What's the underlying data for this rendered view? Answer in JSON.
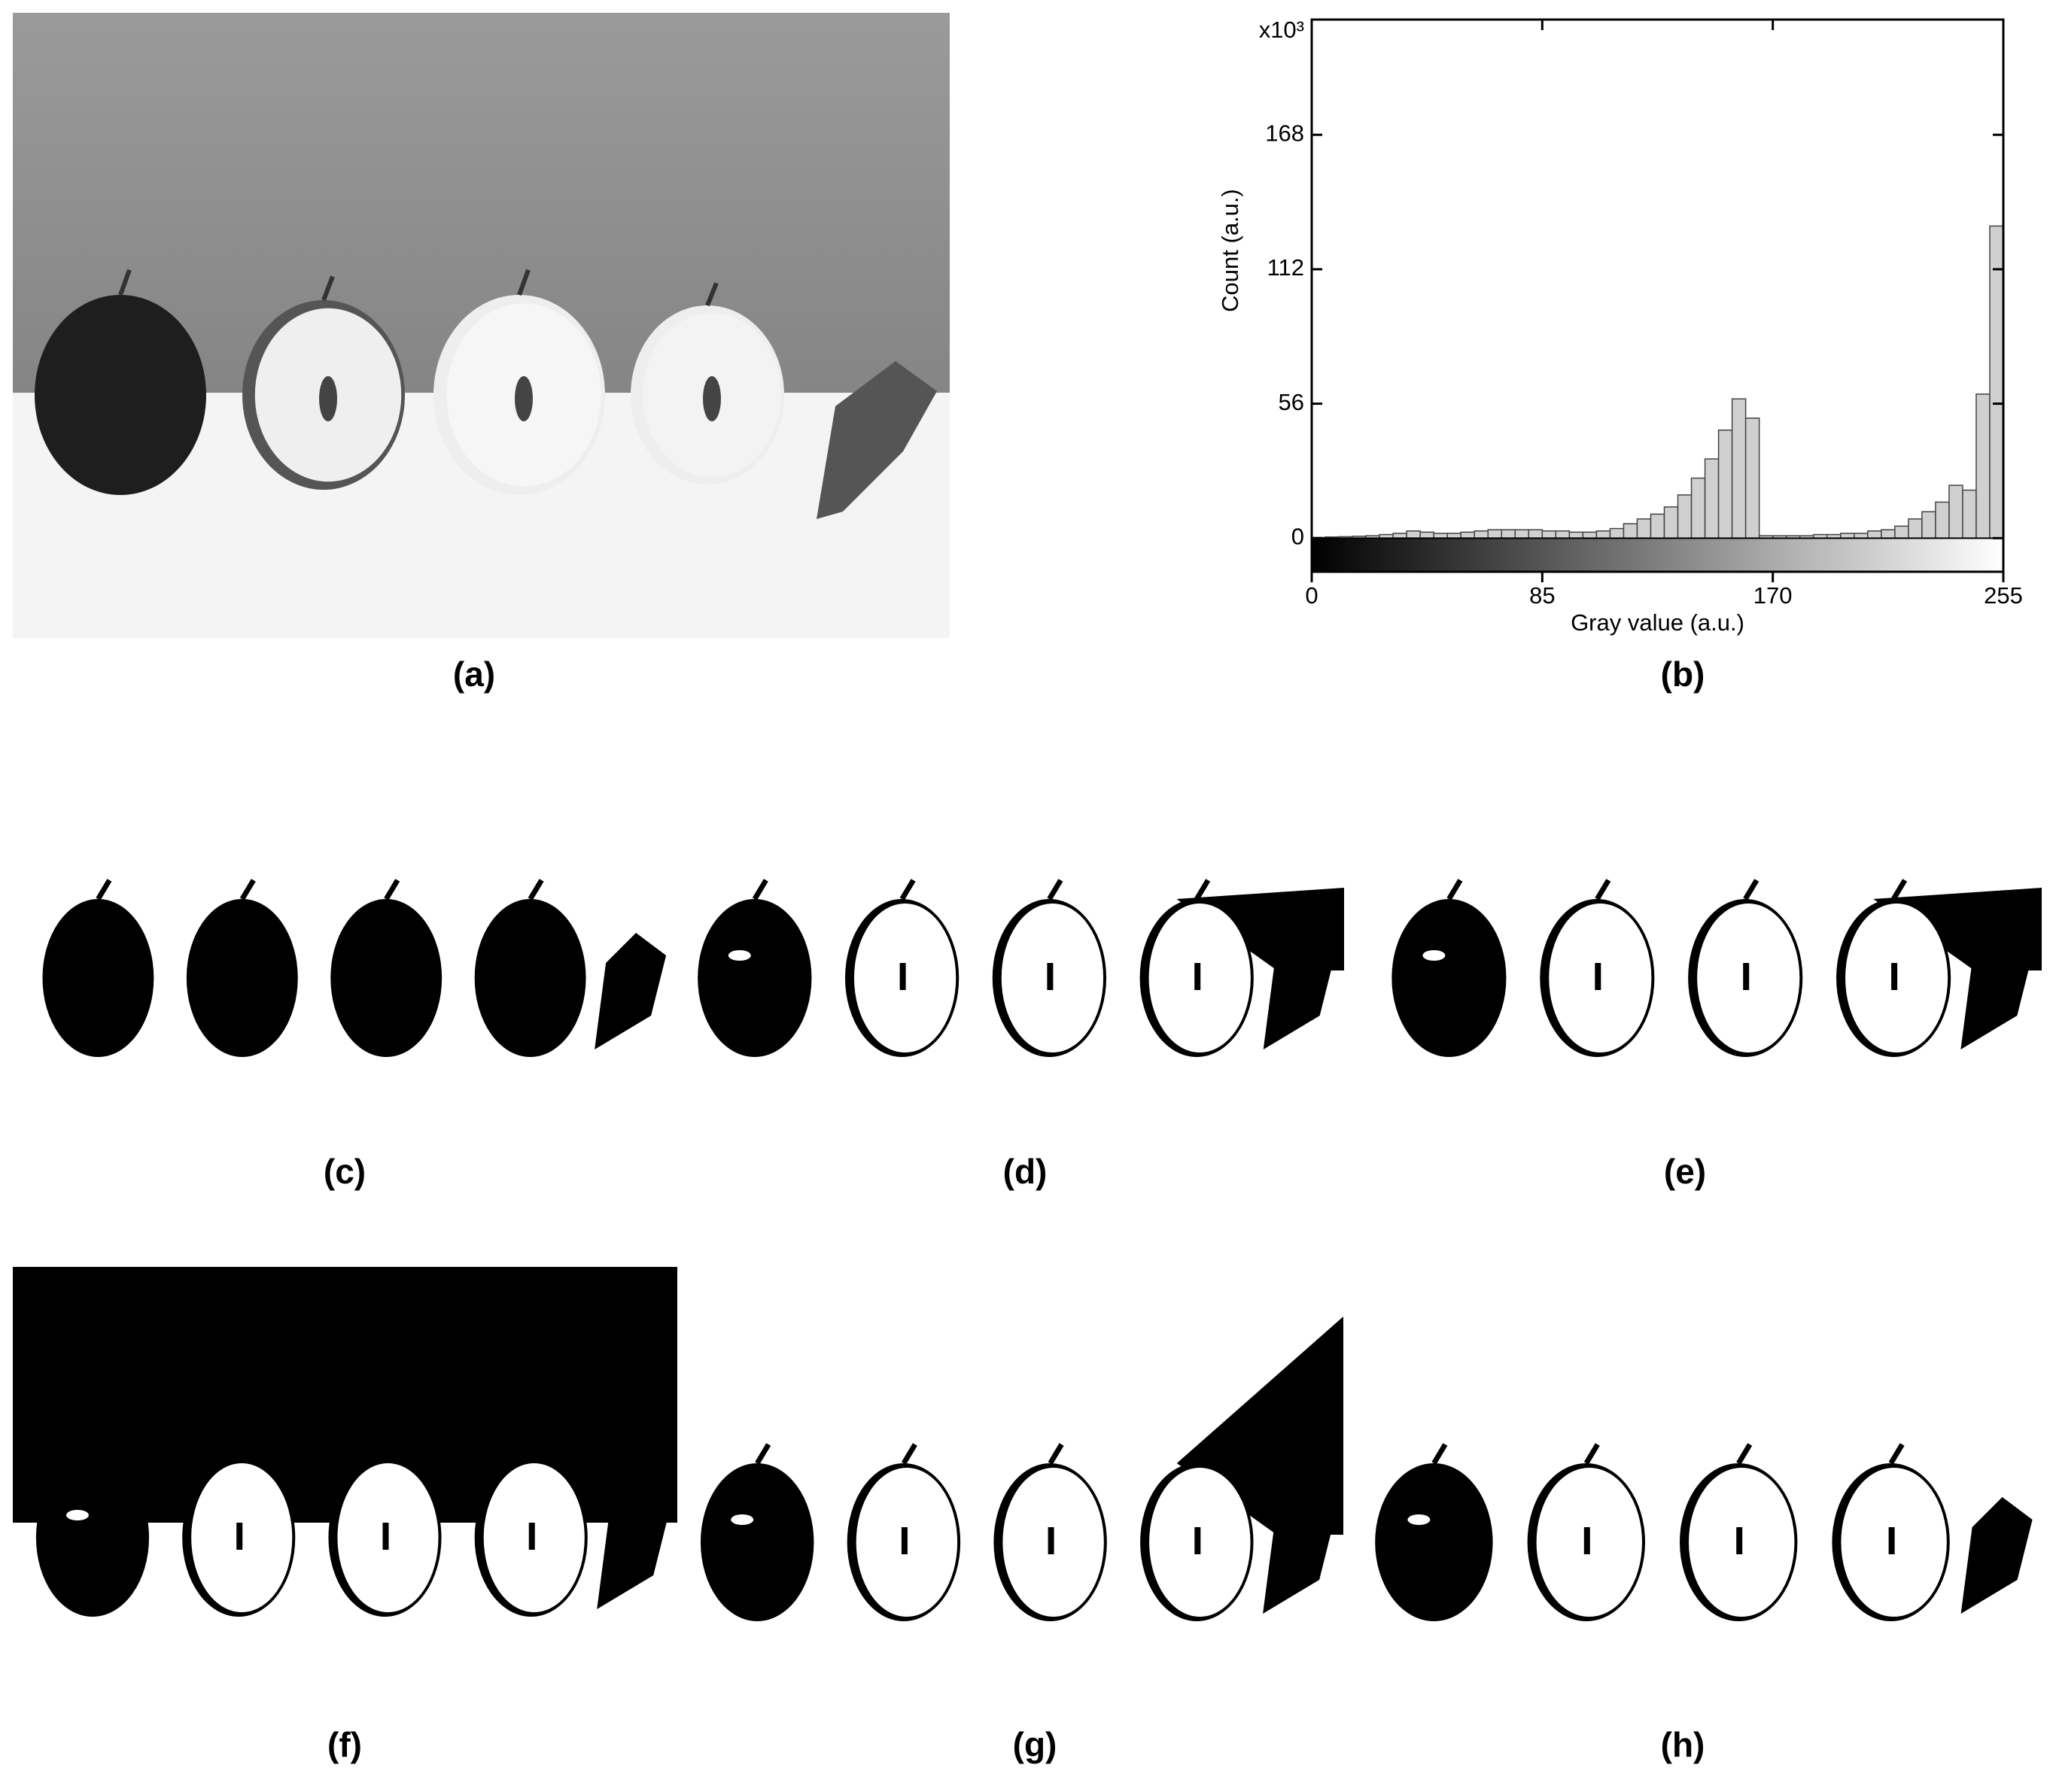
{
  "labels": [
    "(a)",
    "(b)",
    "(c)",
    "(d)",
    "(e)",
    "(f)",
    "(g)",
    "(h)"
  ],
  "chart_data": {
    "type": "histogram",
    "x_label": "Gray value (a.u.)",
    "y_label": "Count (a.u.)",
    "multiplier": "x10³",
    "bins": [
      0,
      5,
      10,
      15,
      20,
      25,
      30,
      35,
      40,
      45,
      50,
      55,
      60,
      65,
      70,
      75,
      80,
      85,
      90,
      95,
      100,
      105,
      110,
      115,
      120,
      125,
      130,
      135,
      140,
      145,
      150,
      155,
      160,
      165,
      170,
      175,
      180,
      185,
      190,
      195,
      200,
      205,
      210,
      215,
      220,
      225,
      230,
      235,
      240,
      245,
      250,
      255
    ],
    "counts": [
      0.3,
      0.5,
      0.6,
      0.8,
      1,
      1.5,
      2,
      3,
      2.5,
      2,
      2,
      2.5,
      3,
      3.5,
      3.5,
      3.5,
      3.5,
      3,
      3,
      2.5,
      2.5,
      3,
      4,
      6,
      8,
      10,
      13,
      18,
      25,
      33,
      45,
      58,
      50,
      1,
      1,
      1,
      1,
      1.5,
      1.5,
      2,
      2,
      3,
      3.5,
      5,
      8,
      11,
      15,
      22,
      20,
      60,
      130
    ],
    "color": "#d0d0d0",
    "xlim": [
      0,
      255
    ],
    "ylim": [
      -14,
      216
    ],
    "xticks": [
      0,
      85,
      170,
      255
    ],
    "yticks": [
      0,
      56,
      112,
      168
    ]
  }
}
